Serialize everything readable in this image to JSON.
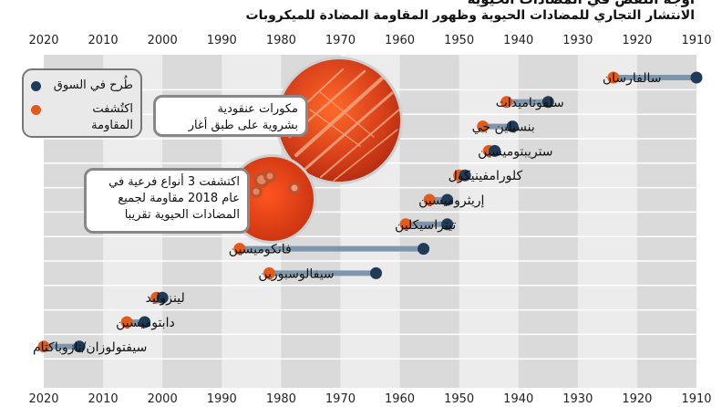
{
  "title_top": "أوجه النقص في المضادات الحيوية",
  "chart_data": {
    "type": "timeline",
    "title": "الانتشار التجاري للمضادات الحيوية وظهور المقاومة المضادة للميكروبات",
    "xlim": [
      1910,
      2020
    ],
    "x_reversed": true,
    "ticks": [
      2020,
      2010,
      2000,
      1990,
      1980,
      1970,
      1960,
      1950,
      1940,
      1930,
      1920,
      1910
    ],
    "series": [
      {
        "name": "طُرح في السوق",
        "color": "#1f3b57"
      },
      {
        "name": "اكتُشفت المقاومة",
        "color": "#e25a1c"
      }
    ],
    "items": [
      {
        "name": "سالفارسان",
        "market": 1910,
        "resistance": 1924
      },
      {
        "name": "سلفوناميدات",
        "market": 1935,
        "resistance": 1942
      },
      {
        "name": "بنسيلين جي",
        "market": 1941,
        "resistance": 1946
      },
      {
        "name": "ستريبتوميسين",
        "market": 1944,
        "resistance": 1945
      },
      {
        "name": "كلورامفينيكول",
        "market": 1949,
        "resistance": 1950
      },
      {
        "name": "إريثروميسين",
        "market": 1952,
        "resistance": 1955
      },
      {
        "name": "تيتراسيكلين",
        "market": 1952,
        "resistance": 1959
      },
      {
        "name": "فانكوميسين",
        "market": 1956,
        "resistance": 1987
      },
      {
        "name": "سيفالوسبورين",
        "market": 1964,
        "resistance": 1982
      },
      {
        "name": "لينزوليد",
        "market": 2000,
        "resistance": 2001
      },
      {
        "name": "دابتوميسين",
        "market": 2003,
        "resistance": 2006
      },
      {
        "name": "سيفتولوزان/تازوباكتام",
        "market": 2014,
        "resistance": 2020
      }
    ]
  },
  "legend": {
    "market_label": "طُرح في السوق",
    "resistance_label_line1": "اكتُشفت",
    "resistance_label_line2": "المقاومة",
    "market_color": "#1f3b57",
    "resistance_color": "#e25a1c"
  },
  "callouts": [
    {
      "lines": [
        "مكورات عنقودية",
        "بشروية على طبق أغار"
      ]
    },
    {
      "lines": [
        "اكتشفت 3 أنواع فرعية في",
        "عام 2018 مقاومة لجميع",
        "المضادات الحيوية تقريبا"
      ]
    }
  ],
  "colors": {
    "market": "#1f3b57",
    "resistance": "#e25a1c",
    "connector": "#7d96ab",
    "band_light": "#ececec",
    "band_dark": "#dadada"
  }
}
